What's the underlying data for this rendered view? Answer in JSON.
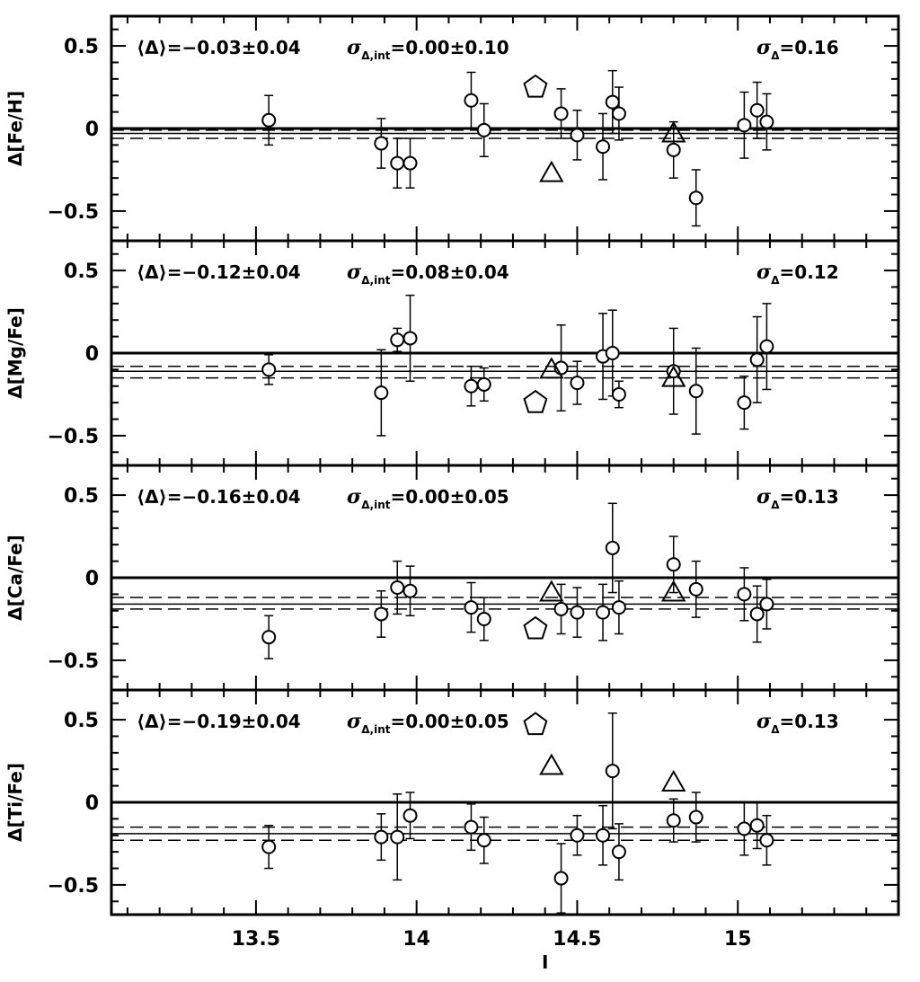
{
  "chart_data": {
    "type": "scatter",
    "x": {
      "label": "I",
      "range": [
        13.05,
        15.5
      ],
      "ticks": [
        13.5,
        14,
        14.5,
        15
      ],
      "tick_labels": [
        "13.5",
        "14",
        "14.5",
        "15"
      ]
    },
    "y_range": [
      -0.68,
      0.68
    ],
    "y_ticks": [
      -0.5,
      0,
      0.5
    ],
    "y_tick_labels": [
      "−0.5",
      "0",
      "0.5"
    ],
    "panels": [
      {
        "ylabel": "Δ[Fe/H]",
        "mean_text": "⟨Δ⟩=−0.03±0.04",
        "sigma_int": {
          "sym": "σ",
          "sub": "Δ,int",
          "val": "=0.00±0.10"
        },
        "sigma": {
          "sym": "σ",
          "sub": "Δ",
          "val": "=0.16"
        },
        "ref_line": 0,
        "mean_line": -0.03,
        "dashed_lines": [
          -0.01,
          -0.06
        ],
        "circles": [
          {
            "x": 13.54,
            "y": 0.05,
            "err": 0.15
          },
          {
            "x": 13.89,
            "y": -0.09,
            "err": 0.15
          },
          {
            "x": 13.94,
            "y": -0.21,
            "err": 0.15
          },
          {
            "x": 13.98,
            "y": -0.21,
            "err": 0.15
          },
          {
            "x": 14.17,
            "y": 0.17,
            "err": 0.17
          },
          {
            "x": 14.21,
            "y": -0.01,
            "err": 0.16
          },
          {
            "x": 14.45,
            "y": 0.09,
            "err": 0.15
          },
          {
            "x": 14.5,
            "y": -0.04,
            "err": 0.15
          },
          {
            "x": 14.58,
            "y": -0.11,
            "err": 0.2
          },
          {
            "x": 14.61,
            "y": 0.16,
            "err": 0.19
          },
          {
            "x": 14.63,
            "y": 0.09,
            "err": 0.16
          },
          {
            "x": 14.8,
            "y": -0.13,
            "err": 0.17
          },
          {
            "x": 14.87,
            "y": -0.42,
            "err": 0.17
          },
          {
            "x": 15.02,
            "y": 0.02,
            "err": 0.2
          },
          {
            "x": 15.06,
            "y": 0.11,
            "err": 0.17
          },
          {
            "x": 15.09,
            "y": 0.04,
            "err": 0.17
          }
        ],
        "triangles": [
          {
            "x": 14.42,
            "y": -0.27
          },
          {
            "x": 14.8,
            "y": -0.03
          }
        ],
        "pentagons": [
          {
            "x": 14.37,
            "y": 0.25
          }
        ]
      },
      {
        "ylabel": "Δ[Mg/Fe]",
        "mean_text": "⟨Δ⟩=−0.12±0.04",
        "sigma_int": {
          "sym": "σ",
          "sub": "Δ,int",
          "val": "=0.08±0.04"
        },
        "sigma": {
          "sym": "σ",
          "sub": "Δ",
          "val": "=0.12"
        },
        "ref_line": 0,
        "mean_line": -0.11,
        "dashed_lines": [
          -0.08,
          -0.15
        ],
        "circles": [
          {
            "x": 13.54,
            "y": -0.1,
            "err": 0.09
          },
          {
            "x": 13.89,
            "y": -0.24,
            "err": 0.26
          },
          {
            "x": 13.94,
            "y": 0.08,
            "err": 0.07
          },
          {
            "x": 13.98,
            "y": 0.09,
            "err": 0.26
          },
          {
            "x": 14.17,
            "y": -0.2,
            "err": 0.12
          },
          {
            "x": 14.21,
            "y": -0.19,
            "err": 0.1
          },
          {
            "x": 14.45,
            "y": -0.09,
            "err": 0.26
          },
          {
            "x": 14.5,
            "y": -0.18,
            "err": 0.13
          },
          {
            "x": 14.58,
            "y": -0.02,
            "err": 0.26
          },
          {
            "x": 14.61,
            "y": 0.0,
            "err": 0.26
          },
          {
            "x": 14.63,
            "y": -0.25,
            "err": 0.08
          },
          {
            "x": 14.8,
            "y": -0.11,
            "err": 0.26
          },
          {
            "x": 14.87,
            "y": -0.23,
            "err": 0.26
          },
          {
            "x": 15.02,
            "y": -0.3,
            "err": 0.16
          },
          {
            "x": 15.06,
            "y": -0.04,
            "err": 0.26
          },
          {
            "x": 15.09,
            "y": 0.04,
            "err": 0.26
          }
        ],
        "triangles": [
          {
            "x": 14.42,
            "y": -0.1
          },
          {
            "x": 14.8,
            "y": -0.15
          }
        ],
        "pentagons": [
          {
            "x": 14.37,
            "y": -0.3
          }
        ]
      },
      {
        "ylabel": "Δ[Ca/Fe]",
        "mean_text": "⟨Δ⟩=−0.16±0.04",
        "sigma_int": {
          "sym": "σ",
          "sub": "Δ,int",
          "val": "=0.00±0.05"
        },
        "sigma": {
          "sym": "σ",
          "sub": "Δ",
          "val": "=0.13"
        },
        "ref_line": 0,
        "mean_line": -0.16,
        "dashed_lines": [
          -0.12,
          -0.19
        ],
        "circles": [
          {
            "x": 13.54,
            "y": -0.36,
            "err": 0.13
          },
          {
            "x": 13.89,
            "y": -0.22,
            "err": 0.14
          },
          {
            "x": 13.94,
            "y": -0.06,
            "err": 0.16
          },
          {
            "x": 13.98,
            "y": -0.08,
            "err": 0.15
          },
          {
            "x": 14.17,
            "y": -0.18,
            "err": 0.15
          },
          {
            "x": 14.21,
            "y": -0.25,
            "err": 0.13
          },
          {
            "x": 14.45,
            "y": -0.19,
            "err": 0.15
          },
          {
            "x": 14.5,
            "y": -0.21,
            "err": 0.15
          },
          {
            "x": 14.58,
            "y": -0.21,
            "err": 0.17
          },
          {
            "x": 14.61,
            "y": 0.18,
            "err": 0.27
          },
          {
            "x": 14.63,
            "y": -0.18,
            "err": 0.16
          },
          {
            "x": 14.8,
            "y": 0.08,
            "err": 0.17
          },
          {
            "x": 14.87,
            "y": -0.07,
            "err": 0.17
          },
          {
            "x": 15.02,
            "y": -0.1,
            "err": 0.16
          },
          {
            "x": 15.06,
            "y": -0.22,
            "err": 0.17
          },
          {
            "x": 15.09,
            "y": -0.16,
            "err": 0.15
          }
        ],
        "triangles": [
          {
            "x": 14.42,
            "y": -0.09
          },
          {
            "x": 14.8,
            "y": -0.09
          }
        ],
        "pentagons": [
          {
            "x": 14.37,
            "y": -0.31
          }
        ]
      },
      {
        "ylabel": "Δ[Ti/Fe]",
        "mean_text": "⟨Δ⟩=−0.19±0.04",
        "sigma_int": {
          "sym": "σ",
          "sub": "Δ,int",
          "val": "=0.00±0.05"
        },
        "sigma": {
          "sym": "σ",
          "sub": "Δ",
          "val": "=0.13"
        },
        "ref_line": 0,
        "mean_line": -0.19,
        "dashed_lines": [
          -0.15,
          -0.23
        ],
        "circles": [
          {
            "x": 13.54,
            "y": -0.27,
            "err": 0.13
          },
          {
            "x": 13.89,
            "y": -0.21,
            "err": 0.14
          },
          {
            "x": 13.94,
            "y": -0.21,
            "err": 0.26
          },
          {
            "x": 13.98,
            "y": -0.08,
            "err": 0.14
          },
          {
            "x": 14.17,
            "y": -0.15,
            "err": 0.14
          },
          {
            "x": 14.21,
            "y": -0.23,
            "err": 0.14
          },
          {
            "x": 14.45,
            "y": -0.46,
            "err": 0.21
          },
          {
            "x": 14.5,
            "y": -0.2,
            "err": 0.12
          },
          {
            "x": 14.58,
            "y": -0.2,
            "err": 0.18
          },
          {
            "x": 14.61,
            "y": 0.19,
            "err": 0.35
          },
          {
            "x": 14.63,
            "y": -0.3,
            "err": 0.17
          },
          {
            "x": 14.8,
            "y": -0.11,
            "err": 0.13
          },
          {
            "x": 14.87,
            "y": -0.09,
            "err": 0.15
          },
          {
            "x": 15.02,
            "y": -0.16,
            "err": 0.16
          },
          {
            "x": 15.06,
            "y": -0.14,
            "err": 0.14
          },
          {
            "x": 15.09,
            "y": -0.23,
            "err": 0.15
          }
        ],
        "triangles": [
          {
            "x": 14.42,
            "y": 0.22
          },
          {
            "x": 14.8,
            "y": 0.12
          }
        ],
        "pentagons": [
          {
            "x": 14.37,
            "y": 0.47
          }
        ]
      }
    ]
  }
}
